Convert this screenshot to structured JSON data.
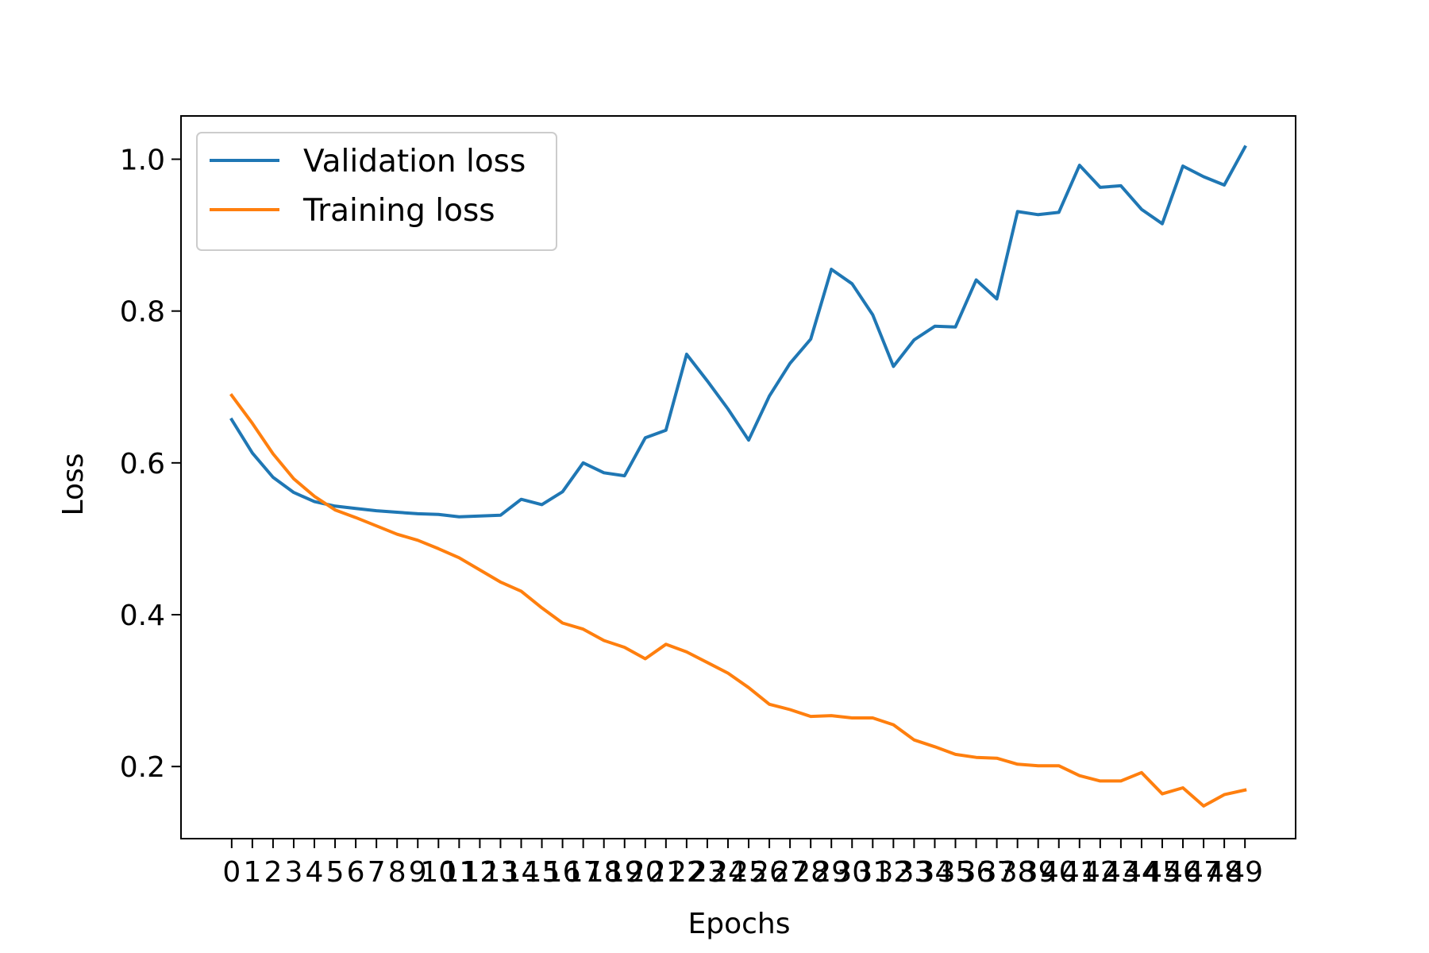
{
  "chart_data": {
    "type": "line",
    "title": "",
    "xlabel": "Epochs",
    "ylabel": "Loss",
    "x": [
      0,
      1,
      2,
      3,
      4,
      5,
      6,
      7,
      8,
      9,
      10,
      11,
      12,
      13,
      14,
      15,
      16,
      17,
      18,
      19,
      20,
      21,
      22,
      23,
      24,
      25,
      26,
      27,
      28,
      29,
      30,
      31,
      32,
      33,
      34,
      35,
      36,
      37,
      38,
      39,
      40,
      41,
      42,
      43,
      44,
      45,
      46,
      47,
      48,
      49
    ],
    "x_tick_labels": [
      "0",
      "1",
      "2",
      "3",
      "4",
      "5",
      "6",
      "7",
      "8",
      "9",
      "10",
      "11",
      "12",
      "13",
      "14",
      "15",
      "16",
      "17",
      "18",
      "19",
      "20",
      "21",
      "22",
      "23",
      "24",
      "25",
      "26",
      "27",
      "28",
      "29",
      "30",
      "31",
      "32",
      "33",
      "34",
      "35",
      "36",
      "37",
      "38",
      "39",
      "40",
      "41",
      "42",
      "43",
      "44",
      "45",
      "46",
      "47",
      "48",
      "49"
    ],
    "y_ticks": [
      0.2,
      0.4,
      0.6,
      0.8,
      1.0
    ],
    "y_tick_labels": [
      "0.2",
      "0.4",
      "0.6",
      "0.8",
      "1.0"
    ],
    "xlim": [
      -2.45,
      51.45
    ],
    "ylim": [
      0.105,
      1.057
    ],
    "grid": false,
    "legend_position": "upper-left",
    "series": [
      {
        "name": "Validation loss",
        "color": "#1f77b4",
        "values": [
          0.657,
          0.613,
          0.581,
          0.561,
          0.549,
          0.543,
          0.54,
          0.537,
          0.535,
          0.533,
          0.532,
          0.529,
          0.53,
          0.531,
          0.552,
          0.545,
          0.562,
          0.6,
          0.587,
          0.583,
          0.633,
          0.643,
          0.743,
          0.708,
          0.671,
          0.63,
          0.688,
          0.731,
          0.763,
          0.855,
          0.836,
          0.795,
          0.727,
          0.762,
          0.78,
          0.779,
          0.841,
          0.816,
          0.931,
          0.927,
          0.93,
          0.992,
          0.963,
          0.965,
          0.934,
          0.915,
          0.991,
          0.977,
          0.966,
          1.016
        ]
      },
      {
        "name": "Training loss",
        "color": "#ff7f0e",
        "values": [
          0.689,
          0.652,
          0.612,
          0.579,
          0.556,
          0.538,
          0.528,
          0.517,
          0.506,
          0.498,
          0.487,
          0.475,
          0.459,
          0.443,
          0.431,
          0.409,
          0.389,
          0.381,
          0.366,
          0.357,
          0.342,
          0.361,
          0.351,
          0.337,
          0.323,
          0.304,
          0.282,
          0.275,
          0.266,
          0.267,
          0.264,
          0.264,
          0.255,
          0.235,
          0.226,
          0.216,
          0.212,
          0.211,
          0.203,
          0.201,
          0.201,
          0.188,
          0.181,
          0.181,
          0.192,
          0.164,
          0.172,
          0.148,
          0.163,
          0.169
        ]
      }
    ]
  }
}
